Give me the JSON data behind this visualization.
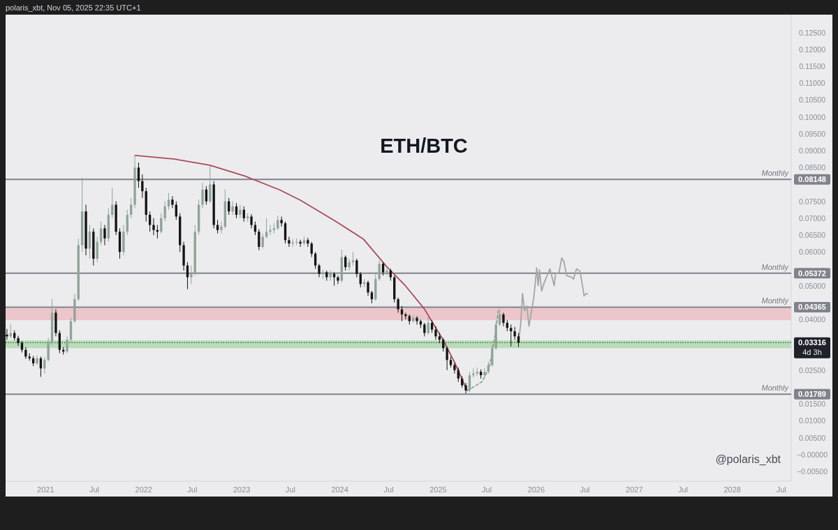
{
  "chart_data": {
    "type": "candlestick",
    "title": "ETH/BTC",
    "annotations": [
      "polaris_xbt, Nov 05, 2025 22:35 UTC+1",
      "@polaris_xbt",
      "0.08148",
      "0.05372",
      "0.04365",
      "0.01789",
      "0.03316"
    ],
    "xlim": [
      "2020-08-05",
      "2028-08-07"
    ],
    "xticks": [
      "2021",
      {
        "value": "2021-07",
        "label": "Jul"
      },
      "2022",
      {
        "value": "2022-07",
        "label": "Jul"
      },
      "2023",
      {
        "value": "2023-07",
        "label": "Jul"
      },
      "2024",
      {
        "value": "2024-07",
        "label": "Jul"
      },
      "2025",
      {
        "value": "2025-07",
        "label": "Jul"
      },
      "2026",
      {
        "value": "2026-07",
        "label": "Jul"
      },
      "2027",
      {
        "value": "2027-07",
        "label": "Jul"
      },
      "2028",
      {
        "value": "2028-07",
        "label": "Jul"
      }
    ],
    "ylim": [
      -0.0079,
      0.1303
    ],
    "yticks": [
      {
        "value": 0.125,
        "label": "0.12500"
      },
      {
        "value": 0.12,
        "label": "0.12000"
      },
      {
        "value": 0.115,
        "label": "0.11500"
      },
      {
        "value": 0.11,
        "label": "0.11000"
      },
      {
        "value": 0.105,
        "label": "0.10500"
      },
      {
        "value": 0.1,
        "label": "0.10000"
      },
      {
        "value": 0.095,
        "label": "0.09500"
      },
      {
        "value": 0.09,
        "label": "0.09000"
      },
      {
        "value": 0.085,
        "label": "0.08500"
      },
      {
        "value": 0.075,
        "label": "0.07500"
      },
      {
        "value": 0.07,
        "label": "0.07000"
      },
      {
        "value": 0.065,
        "label": "0.06500"
      },
      {
        "value": 0.06,
        "label": "0.06000"
      },
      {
        "value": 0.05,
        "label": "0.05000"
      },
      {
        "value": 0.04,
        "label": "0.04000"
      },
      {
        "value": 0.025,
        "label": "0.02500"
      },
      {
        "value": 0.015,
        "label": "0.01500"
      },
      {
        "value": 0.01,
        "label": "0.01000"
      },
      {
        "value": 0.005,
        "label": "0.00500"
      },
      {
        "value": 0,
        "label": "−0.00000"
      },
      {
        "value": -0.005,
        "label": "−0.00500"
      }
    ],
    "bands": [
      {
        "axis": "y",
        "from": 0.0398,
        "to": 0.04365,
        "color": "#ecc6ca"
      },
      {
        "axis": "y",
        "from": 0.0315,
        "to": 0.0338,
        "color": "#b9ddb9"
      }
    ],
    "ref_lines": [
      {
        "axis": "y",
        "value": 0.08148,
        "label": "Monthly",
        "color": "#80838c"
      },
      {
        "axis": "y",
        "value": 0.05372,
        "label": "Monthly",
        "color": "#80838c"
      },
      {
        "axis": "y",
        "value": 0.04365,
        "label": "Monthly",
        "color": "#80838c"
      },
      {
        "axis": "y",
        "value": 0.01789,
        "label": "Monthly",
        "color": "#80838c"
      },
      {
        "axis": "y",
        "value": 0.03316,
        "label": "4d 3h",
        "color": "#1f222a",
        "line_style": "dotted"
      }
    ],
    "series": [
      {
        "type": "line",
        "color": "#a5a5a8",
        "x": [
          "2025-10-27",
          "2025-11-04",
          "2025-11-11",
          "2025-11-19",
          "2025-11-27",
          "2025-12-05",
          "2025-12-23",
          "2026-01-03",
          "2026-01-08",
          "2026-01-13",
          "2026-01-21",
          "2026-01-31",
          "2026-02-08",
          "2026-02-21",
          "2026-03-09",
          "2026-03-14",
          "2026-03-27",
          "2026-04-06",
          "2026-04-14",
          "2026-04-24",
          "2026-05-13",
          "2026-05-20",
          "2026-05-31",
          "2026-06-13",
          "2026-06-23",
          "2026-06-28",
          "2026-07-06",
          "2026-07-11"
        ],
        "values": [
          0.0332,
          0.0385,
          0.0477,
          0.0426,
          0.044,
          0.038,
          0.0465,
          0.0553,
          0.05,
          0.0547,
          0.0484,
          0.051,
          0.0525,
          0.055,
          0.05,
          0.0535,
          0.054,
          0.0582,
          0.0572,
          0.053,
          0.0525,
          0.052,
          0.055,
          0.0543,
          0.0496,
          0.047,
          0.0477,
          0.0475
        ]
      },
      {
        "type": "line",
        "color": "#a94b5c",
        "x": [
          "2021-11-30",
          "2022-04-27",
          "2022-09-04",
          "2023-01-12",
          "2023-05-22",
          "2023-08-08",
          "2023-12-16",
          "2024-03-29",
          "2024-06-23",
          "2024-09-01",
          "2024-11-10",
          "2025-01-17",
          "2025-03-02",
          "2025-04-18"
        ],
        "values": [
          0.0886,
          0.0875,
          0.0857,
          0.0825,
          0.0784,
          0.0753,
          0.0691,
          0.0638,
          0.0557,
          0.05,
          0.0432,
          0.0343,
          0.0275,
          0.0191
        ]
      },
      {
        "type": "line",
        "color": "#7e9e88",
        "line_style": "dashed",
        "x": [
          "2025-04-20",
          "2025-06-14",
          "2025-07-10",
          "2025-07-23",
          "2025-08-05",
          "2025-08-13"
        ],
        "values": [
          0.0189,
          0.0216,
          0.0257,
          0.0313,
          0.0374,
          0.043
        ]
      },
      {
        "x": [
          "2020-08-10",
          "2020-08-24",
          "2020-09-07",
          "2020-09-21",
          "2020-10-05",
          "2020-10-19",
          "2020-11-02",
          "2020-11-16",
          "2020-11-30",
          "2020-12-14",
          "2020-12-28",
          "2021-01-11",
          "2021-01-25",
          "2021-02-08",
          "2021-02-22",
          "2021-03-08",
          "2021-03-22",
          "2021-04-05",
          "2021-04-19",
          "2021-05-03",
          "2021-05-17",
          "2021-05-31",
          "2021-06-14",
          "2021-06-28",
          "2021-07-12",
          "2021-07-26",
          "2021-08-09",
          "2021-08-23",
          "2021-09-06",
          "2021-09-20",
          "2021-10-04",
          "2021-10-18",
          "2021-11-01",
          "2021-11-15",
          "2021-11-29",
          "2021-12-13",
          "2021-12-27",
          "2022-01-10",
          "2022-01-24",
          "2022-02-07",
          "2022-02-21",
          "2022-03-07",
          "2022-03-21",
          "2022-04-04",
          "2022-04-18",
          "2022-05-02",
          "2022-05-16",
          "2022-05-30",
          "2022-06-13",
          "2022-06-27",
          "2022-07-11",
          "2022-07-25",
          "2022-08-08",
          "2022-08-22",
          "2022-09-05",
          "2022-09-19",
          "2022-10-03",
          "2022-10-17",
          "2022-10-31",
          "2022-11-14",
          "2022-11-28",
          "2022-12-12",
          "2022-12-26",
          "2023-01-09",
          "2023-01-23",
          "2023-02-06",
          "2023-02-20",
          "2023-03-06",
          "2023-03-20",
          "2023-04-03",
          "2023-04-17",
          "2023-05-01",
          "2023-05-15",
          "2023-05-29",
          "2023-06-12",
          "2023-06-26",
          "2023-07-10",
          "2023-07-24",
          "2023-08-07",
          "2023-08-21",
          "2023-09-04",
          "2023-09-18",
          "2023-10-02",
          "2023-10-16",
          "2023-10-30",
          "2023-11-13",
          "2023-11-27",
          "2023-12-11",
          "2023-12-25",
          "2024-01-08",
          "2024-01-22",
          "2024-02-05",
          "2024-02-19",
          "2024-03-04",
          "2024-03-18",
          "2024-04-01",
          "2024-04-15",
          "2024-04-29",
          "2024-05-13",
          "2024-05-27",
          "2024-06-10",
          "2024-06-24",
          "2024-07-08",
          "2024-07-22",
          "2024-08-05",
          "2024-08-19",
          "2024-09-02",
          "2024-09-16",
          "2024-09-30",
          "2024-10-14",
          "2024-10-28",
          "2024-11-11",
          "2024-11-25",
          "2024-12-09",
          "2024-12-23",
          "2025-01-06",
          "2025-01-20",
          "2025-02-03",
          "2025-02-17",
          "2025-03-03",
          "2025-03-17",
          "2025-03-31",
          "2025-04-14",
          "2025-04-28",
          "2025-05-12",
          "2025-05-26",
          "2025-06-09",
          "2025-06-23",
          "2025-07-07",
          "2025-07-21",
          "2025-08-04",
          "2025-08-18",
          "2025-09-01",
          "2025-09-15",
          "2025-09-29",
          "2025-10-13",
          "2025-10-27"
        ],
        "ohlc": [
          [
            0.0355,
            0.0372,
            0.034,
            0.035
          ],
          [
            0.035,
            0.0385,
            0.0345,
            0.036
          ],
          [
            0.036,
            0.0368,
            0.0338,
            0.0345
          ],
          [
            0.0345,
            0.0352,
            0.0322,
            0.033
          ],
          [
            0.033,
            0.0336,
            0.0302,
            0.031
          ],
          [
            0.031,
            0.0318,
            0.0283,
            0.029
          ],
          [
            0.029,
            0.03,
            0.0278,
            0.0285
          ],
          [
            0.0285,
            0.0292,
            0.0262,
            0.027
          ],
          [
            0.027,
            0.0293,
            0.0265,
            0.0285
          ],
          [
            0.0285,
            0.029,
            0.023,
            0.0255
          ],
          [
            0.0255,
            0.0288,
            0.024,
            0.028
          ],
          [
            0.028,
            0.0345,
            0.0276,
            0.033
          ],
          [
            0.033,
            0.046,
            0.0325,
            0.042
          ],
          [
            0.042,
            0.043,
            0.035,
            0.036
          ],
          [
            0.036,
            0.0368,
            0.03,
            0.031
          ],
          [
            0.031,
            0.0318,
            0.0296,
            0.0305
          ],
          [
            0.0305,
            0.035,
            0.03,
            0.034
          ],
          [
            0.034,
            0.0405,
            0.0335,
            0.0395
          ],
          [
            0.0395,
            0.0475,
            0.039,
            0.046
          ],
          [
            0.046,
            0.064,
            0.0455,
            0.062
          ],
          [
            0.062,
            0.082,
            0.06,
            0.072
          ],
          [
            0.072,
            0.074,
            0.059,
            0.061
          ],
          [
            0.061,
            0.068,
            0.058,
            0.066
          ],
          [
            0.066,
            0.067,
            0.056,
            0.058
          ],
          [
            0.058,
            0.0645,
            0.057,
            0.063
          ],
          [
            0.063,
            0.069,
            0.062,
            0.067
          ],
          [
            0.067,
            0.068,
            0.062,
            0.064
          ],
          [
            0.064,
            0.073,
            0.063,
            0.071
          ],
          [
            0.071,
            0.079,
            0.07,
            0.074
          ],
          [
            0.074,
            0.075,
            0.065,
            0.066
          ],
          [
            0.066,
            0.067,
            0.058,
            0.06
          ],
          [
            0.06,
            0.068,
            0.059,
            0.066
          ],
          [
            0.066,
            0.0725,
            0.065,
            0.071
          ],
          [
            0.071,
            0.076,
            0.07,
            0.074
          ],
          [
            0.074,
            0.0886,
            0.073,
            0.085
          ],
          [
            0.085,
            0.0865,
            0.079,
            0.081
          ],
          [
            0.081,
            0.083,
            0.076,
            0.078
          ],
          [
            0.078,
            0.079,
            0.069,
            0.071
          ],
          [
            0.071,
            0.072,
            0.066,
            0.068
          ],
          [
            0.068,
            0.07,
            0.065,
            0.0665
          ],
          [
            0.0665,
            0.068,
            0.064,
            0.066
          ],
          [
            0.066,
            0.0715,
            0.0655,
            0.07
          ],
          [
            0.07,
            0.075,
            0.069,
            0.0735
          ],
          [
            0.0735,
            0.0775,
            0.0725,
            0.0755
          ],
          [
            0.0755,
            0.0765,
            0.073,
            0.074
          ],
          [
            0.074,
            0.075,
            0.0695,
            0.0705
          ],
          [
            0.0705,
            0.0715,
            0.06,
            0.062
          ],
          [
            0.062,
            0.063,
            0.0545,
            0.056
          ],
          [
            0.056,
            0.057,
            0.049,
            0.0525
          ],
          [
            0.0525,
            0.056,
            0.0505,
            0.0535
          ],
          [
            0.0535,
            0.068,
            0.053,
            0.066
          ],
          [
            0.066,
            0.0755,
            0.065,
            0.074
          ],
          [
            0.074,
            0.0805,
            0.073,
            0.0785
          ],
          [
            0.0785,
            0.0795,
            0.074,
            0.075
          ],
          [
            0.075,
            0.0855,
            0.0745,
            0.08
          ],
          [
            0.08,
            0.081,
            0.067,
            0.068
          ],
          [
            0.068,
            0.0695,
            0.0655,
            0.0665
          ],
          [
            0.0665,
            0.069,
            0.0655,
            0.0675
          ],
          [
            0.0675,
            0.0786,
            0.067,
            0.075
          ],
          [
            0.075,
            0.076,
            0.071,
            0.072
          ],
          [
            0.072,
            0.075,
            0.071,
            0.0735
          ],
          [
            0.0735,
            0.0745,
            0.07,
            0.071
          ],
          [
            0.071,
            0.074,
            0.07,
            0.0725
          ],
          [
            0.0725,
            0.0735,
            0.069,
            0.07
          ],
          [
            0.07,
            0.0715,
            0.069,
            0.0705
          ],
          [
            0.0705,
            0.0712,
            0.067,
            0.068
          ],
          [
            0.068,
            0.069,
            0.065,
            0.066
          ],
          [
            0.066,
            0.0668,
            0.0605,
            0.0615
          ],
          [
            0.0615,
            0.0655,
            0.061,
            0.0645
          ],
          [
            0.0645,
            0.07,
            0.064,
            0.066
          ],
          [
            0.066,
            0.068,
            0.065,
            0.0665
          ],
          [
            0.0665,
            0.0685,
            0.0655,
            0.067
          ],
          [
            0.067,
            0.0708,
            0.0665,
            0.0695
          ],
          [
            0.0695,
            0.0705,
            0.0675,
            0.0685
          ],
          [
            0.0685,
            0.069,
            0.0625,
            0.0635
          ],
          [
            0.0635,
            0.0645,
            0.0615,
            0.0625
          ],
          [
            0.0625,
            0.0638,
            0.0615,
            0.0628
          ],
          [
            0.0628,
            0.064,
            0.062,
            0.063
          ],
          [
            0.063,
            0.0636,
            0.0615,
            0.0625
          ],
          [
            0.0625,
            0.0645,
            0.062,
            0.0635
          ],
          [
            0.0635,
            0.0642,
            0.0615,
            0.0625
          ],
          [
            0.0625,
            0.063,
            0.0585,
            0.0595
          ],
          [
            0.0595,
            0.06,
            0.055,
            0.056
          ],
          [
            0.056,
            0.0565,
            0.0525,
            0.0535
          ],
          [
            0.0535,
            0.0548,
            0.052,
            0.054
          ],
          [
            0.054,
            0.0545,
            0.0515,
            0.0525
          ],
          [
            0.0525,
            0.0545,
            0.0515,
            0.0535
          ],
          [
            0.0535,
            0.054,
            0.05,
            0.0525
          ],
          [
            0.0525,
            0.053,
            0.0505,
            0.0515
          ],
          [
            0.0515,
            0.0607,
            0.051,
            0.0585
          ],
          [
            0.0585,
            0.059,
            0.0545,
            0.0555
          ],
          [
            0.0555,
            0.058,
            0.0545,
            0.057
          ],
          [
            0.057,
            0.06,
            0.056,
            0.0575
          ],
          [
            0.0575,
            0.058,
            0.0525,
            0.0535
          ],
          [
            0.0535,
            0.054,
            0.0495,
            0.0505
          ],
          [
            0.0505,
            0.052,
            0.0495,
            0.051
          ],
          [
            0.051,
            0.0515,
            0.047,
            0.048
          ],
          [
            0.048,
            0.0485,
            0.0448,
            0.046
          ],
          [
            0.046,
            0.0535,
            0.0455,
            0.052
          ],
          [
            0.052,
            0.0574,
            0.0515,
            0.0565
          ],
          [
            0.0565,
            0.057,
            0.053,
            0.054
          ],
          [
            0.054,
            0.0555,
            0.053,
            0.0545
          ],
          [
            0.0545,
            0.055,
            0.0515,
            0.0525
          ],
          [
            0.0525,
            0.053,
            0.045,
            0.046
          ],
          [
            0.046,
            0.0465,
            0.042,
            0.043
          ],
          [
            0.043,
            0.044,
            0.0395,
            0.0415
          ],
          [
            0.0415,
            0.042,
            0.04,
            0.041
          ],
          [
            0.041,
            0.0415,
            0.0385,
            0.0395
          ],
          [
            0.0395,
            0.0412,
            0.039,
            0.0405
          ],
          [
            0.0405,
            0.041,
            0.0385,
            0.0395
          ],
          [
            0.0395,
            0.04,
            0.0375,
            0.0385
          ],
          [
            0.0385,
            0.039,
            0.035,
            0.036
          ],
          [
            0.036,
            0.041,
            0.0355,
            0.039
          ],
          [
            0.039,
            0.0398,
            0.036,
            0.037
          ],
          [
            0.037,
            0.038,
            0.034,
            0.035
          ],
          [
            0.035,
            0.036,
            0.033,
            0.034
          ],
          [
            0.034,
            0.0345,
            0.0305,
            0.0315
          ],
          [
            0.0315,
            0.032,
            0.025,
            0.028
          ],
          [
            0.028,
            0.029,
            0.0258,
            0.0265
          ],
          [
            0.0265,
            0.0272,
            0.024,
            0.025
          ],
          [
            0.025,
            0.0258,
            0.0215,
            0.0225
          ],
          [
            0.0225,
            0.0232,
            0.0198,
            0.0205
          ],
          [
            0.0205,
            0.0212,
            0.0181,
            0.019
          ],
          [
            0.019,
            0.0245,
            0.0185,
            0.0235
          ],
          [
            0.0235,
            0.0255,
            0.0228,
            0.024
          ],
          [
            0.024,
            0.0258,
            0.0232,
            0.0245
          ],
          [
            0.0245,
            0.0252,
            0.0225,
            0.0235
          ],
          [
            0.0235,
            0.0255,
            0.023,
            0.0245
          ],
          [
            0.0245,
            0.0275,
            0.024,
            0.0265
          ],
          [
            0.0265,
            0.0325,
            0.026,
            0.0315
          ],
          [
            0.0315,
            0.0395,
            0.031,
            0.0385
          ],
          [
            0.0385,
            0.0432,
            0.038,
            0.0415
          ],
          [
            0.0415,
            0.042,
            0.038,
            0.039
          ],
          [
            0.039,
            0.0398,
            0.0365,
            0.0375
          ],
          [
            0.0375,
            0.0385,
            0.032,
            0.0365
          ],
          [
            0.0365,
            0.0378,
            0.034,
            0.035
          ],
          [
            0.035,
            0.036,
            0.0318,
            0.03316
          ]
        ],
        "colors": [
          "#141414",
          "#8fa398",
          "#141414",
          "#141414",
          "#141414",
          "#141414",
          "#141414",
          "#141414",
          "#8fa398",
          "#141414",
          "#8fa398",
          "#8fa398",
          "#8fa398",
          "#141414",
          "#141414",
          "#141414",
          "#8fa398",
          "#8fa398",
          "#8fa398",
          "#8fa398",
          "#8fa398",
          "#141414",
          "#8fa398",
          "#141414",
          "#8fa398",
          "#8fa398",
          "#141414",
          "#8fa398",
          "#8fa398",
          "#141414",
          "#141414",
          "#8fa398",
          "#8fa398",
          "#8fa398",
          "#8fa398",
          "#141414",
          "#141414",
          "#141414",
          "#141414",
          "#141414",
          "#141414",
          "#8fa398",
          "#8fa398",
          "#8fa398",
          "#141414",
          "#141414",
          "#141414",
          "#141414",
          "#141414",
          "#8fa398",
          "#8fa398",
          "#8fa398",
          "#8fa398",
          "#141414",
          "#8fa398",
          "#141414",
          "#141414",
          "#8fa398",
          "#8fa398",
          "#141414",
          "#8fa398",
          "#141414",
          "#8fa398",
          "#141414",
          "#8fa398",
          "#141414",
          "#141414",
          "#141414",
          "#8fa398",
          "#8fa398",
          "#8fa398",
          "#8fa398",
          "#8fa398",
          "#141414",
          "#141414",
          "#141414",
          "#8fa398",
          "#8fa398",
          "#141414",
          "#8fa398",
          "#141414",
          "#141414",
          "#141414",
          "#141414",
          "#8fa398",
          "#141414",
          "#8fa398",
          "#141414",
          "#141414",
          "#8fa398",
          "#141414",
          "#8fa398",
          "#8fa398",
          "#141414",
          "#141414",
          "#8fa398",
          "#141414",
          "#141414",
          "#8fa398",
          "#8fa398",
          "#141414",
          "#8fa398",
          "#141414",
          "#141414",
          "#141414",
          "#141414",
          "#141414",
          "#141414",
          "#8fa398",
          "#141414",
          "#141414",
          "#141414",
          "#8fa398",
          "#141414",
          "#141414",
          "#141414",
          "#141414",
          "#141414",
          "#141414",
          "#141414",
          "#141414",
          "#141414",
          "#141414",
          "#8fa398",
          "#8fa398",
          "#8fa398",
          "#141414",
          "#8fa398",
          "#8fa398",
          "#8fa398",
          "#8fa398",
          "#8fa398",
          "#141414",
          "#141414",
          "#141414",
          "#141414",
          "#141414"
        ]
      }
    ]
  }
}
